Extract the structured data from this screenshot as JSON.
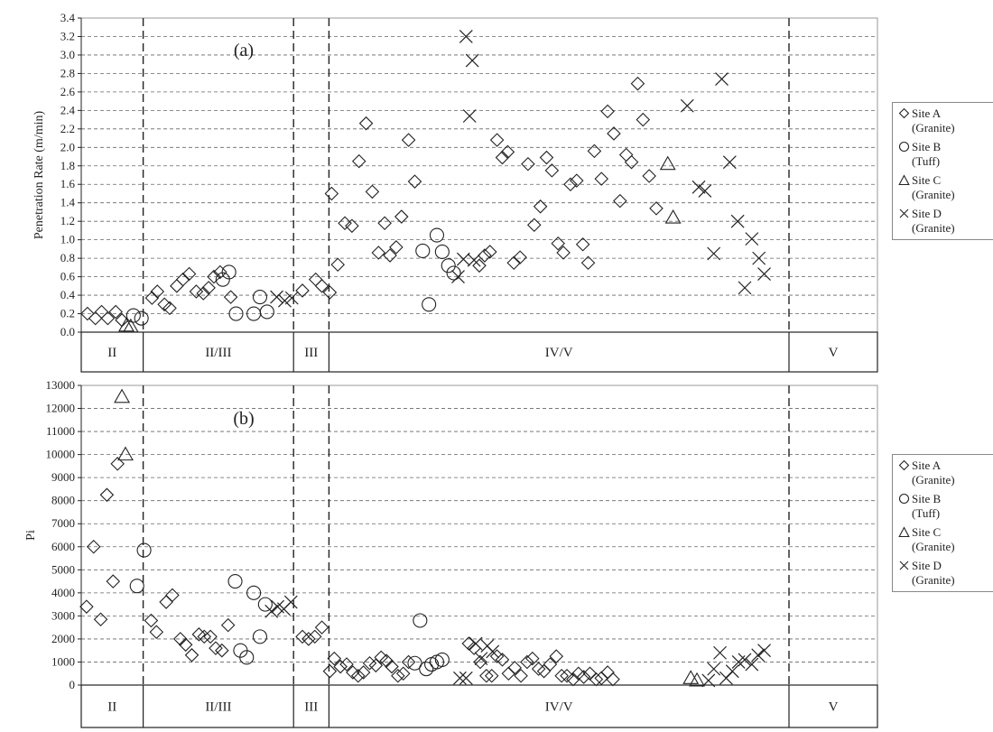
{
  "chart_data": [
    {
      "type": "scatter",
      "panel_label": "(a)",
      "ylabel": "Penetration Rate (m/min)",
      "ylim": [
        0,
        3.4
      ],
      "yticks": [
        "0.0",
        "0.2",
        "0.4",
        "0.6",
        "0.8",
        "1.0",
        "1.2",
        "1.4",
        "1.6",
        "1.8",
        "2.0",
        "2.2",
        "2.4",
        "2.6",
        "2.8",
        "3.0",
        "3.2",
        "3.4"
      ],
      "xlim": [
        0,
        90
      ],
      "grid": true,
      "class_boundaries": [
        7,
        24,
        28,
        80
      ],
      "classes": [
        {
          "label": "II",
          "from": 0,
          "to": 7
        },
        {
          "label": "II/III",
          "from": 7,
          "to": 24
        },
        {
          "label": "III",
          "from": 24,
          "to": 28
        },
        {
          "label": "IV/V",
          "from": 28,
          "to": 80
        },
        {
          "label": "V",
          "from": 80,
          "to": 90
        }
      ],
      "series": [
        {
          "name": "Site A (Granite)",
          "marker": "diamond",
          "points": [
            [
              0.7,
              0.2
            ],
            [
              1.6,
              0.15
            ],
            [
              2.3,
              0.22
            ],
            [
              3.0,
              0.15
            ],
            [
              3.9,
              0.22
            ],
            [
              4.6,
              0.13
            ],
            [
              8.0,
              0.37
            ],
            [
              8.6,
              0.44
            ],
            [
              9.4,
              0.3
            ],
            [
              10.0,
              0.26
            ],
            [
              10.8,
              0.5
            ],
            [
              11.5,
              0.57
            ],
            [
              12.2,
              0.63
            ],
            [
              13.0,
              0.44
            ],
            [
              13.8,
              0.42
            ],
            [
              14.4,
              0.48
            ],
            [
              15.0,
              0.6
            ],
            [
              15.7,
              0.65
            ],
            [
              16.9,
              0.38
            ],
            [
              25.0,
              0.45
            ],
            [
              26.5,
              0.57
            ],
            [
              27.2,
              0.5
            ],
            [
              28.1,
              0.43
            ],
            [
              28.3,
              1.5
            ],
            [
              29.0,
              0.73
            ],
            [
              29.8,
              1.18
            ],
            [
              30.6,
              1.15
            ],
            [
              31.4,
              1.85
            ],
            [
              32.2,
              2.26
            ],
            [
              32.9,
              1.52
            ],
            [
              33.6,
              0.86
            ],
            [
              34.3,
              1.18
            ],
            [
              34.9,
              0.83
            ],
            [
              35.6,
              0.92
            ],
            [
              36.2,
              1.25
            ],
            [
              37.0,
              2.08
            ],
            [
              37.7,
              1.63
            ],
            [
              45.0,
              0.72
            ],
            [
              45.6,
              0.83
            ],
            [
              46.2,
              0.87
            ],
            [
              47.0,
              2.08
            ],
            [
              47.6,
              1.89
            ],
            [
              48.2,
              1.95
            ],
            [
              48.9,
              0.75
            ],
            [
              49.6,
              0.81
            ],
            [
              50.5,
              1.82
            ],
            [
              51.2,
              1.16
            ],
            [
              51.9,
              1.36
            ],
            [
              52.6,
              1.89
            ],
            [
              53.2,
              1.75
            ],
            [
              53.9,
              0.96
            ],
            [
              54.5,
              0.86
            ],
            [
              55.3,
              1.6
            ],
            [
              56.0,
              1.64
            ],
            [
              56.7,
              0.95
            ],
            [
              57.3,
              0.75
            ],
            [
              58.0,
              1.96
            ],
            [
              58.8,
              1.66
            ],
            [
              59.5,
              2.39
            ],
            [
              60.2,
              2.15
            ],
            [
              60.9,
              1.42
            ],
            [
              61.6,
              1.92
            ],
            [
              62.2,
              1.84
            ],
            [
              62.9,
              2.69
            ],
            [
              63.5,
              2.3
            ],
            [
              64.2,
              1.69
            ],
            [
              65.0,
              1.34
            ]
          ]
        },
        {
          "name": "Site B (Tuff)",
          "marker": "circle",
          "points": [
            [
              5.9,
              0.18
            ],
            [
              6.8,
              0.15
            ],
            [
              16.0,
              0.57
            ],
            [
              16.7,
              0.65
            ],
            [
              17.5,
              0.2
            ],
            [
              19.5,
              0.2
            ],
            [
              20.2,
              0.38
            ],
            [
              21.0,
              0.22
            ],
            [
              38.6,
              0.88
            ],
            [
              39.3,
              0.3
            ],
            [
              40.2,
              1.05
            ],
            [
              40.8,
              0.87
            ],
            [
              41.5,
              0.72
            ],
            [
              42.1,
              0.64
            ]
          ]
        },
        {
          "name": "Site C (Granite)",
          "marker": "triangle",
          "points": [
            [
              5.1,
              0.07
            ],
            [
              5.6,
              0.06
            ],
            [
              66.3,
              1.82
            ],
            [
              66.9,
              1.24
            ]
          ]
        },
        {
          "name": "Site D (Granite)",
          "marker": "x",
          "points": [
            [
              22.1,
              0.38
            ],
            [
              23.0,
              0.34
            ],
            [
              23.8,
              0.37
            ],
            [
              43.5,
              3.2
            ],
            [
              44.2,
              2.94
            ],
            [
              43.9,
              2.34
            ],
            [
              42.6,
              0.6
            ],
            [
              43.2,
              0.79
            ],
            [
              44.4,
              0.78
            ],
            [
              68.5,
              2.45
            ],
            [
              69.8,
              1.57
            ],
            [
              70.5,
              1.53
            ],
            [
              71.5,
              0.85
            ],
            [
              72.4,
              2.74
            ],
            [
              73.3,
              1.84
            ],
            [
              74.2,
              1.2
            ],
            [
              75.0,
              0.48
            ],
            [
              75.8,
              1.01
            ],
            [
              76.6,
              0.8
            ],
            [
              77.2,
              0.63
            ]
          ]
        }
      ]
    },
    {
      "type": "scatter",
      "panel_label": "(b)",
      "ylabel": "Pi",
      "ylim": [
        0,
        13000
      ],
      "yticks": [
        "0",
        "1000",
        "2000",
        "3000",
        "4000",
        "5000",
        "6000",
        "7000",
        "8000",
        "9000",
        "10000",
        "11000",
        "12000",
        "13000"
      ],
      "xlim": [
        0,
        90
      ],
      "grid": true,
      "class_boundaries": [
        7,
        24,
        28,
        80
      ],
      "classes": [
        {
          "label": "II",
          "from": 0,
          "to": 7
        },
        {
          "label": "II/III",
          "from": 7,
          "to": 24
        },
        {
          "label": "III",
          "from": 24,
          "to": 28
        },
        {
          "label": "IV/V",
          "from": 28,
          "to": 80
        },
        {
          "label": "V",
          "from": 80,
          "to": 90
        }
      ],
      "series": [
        {
          "name": "Site A (Granite)",
          "marker": "diamond",
          "points": [
            [
              0.6,
              3400
            ],
            [
              1.4,
              6000
            ],
            [
              2.2,
              2850
            ],
            [
              2.9,
              8250
            ],
            [
              3.6,
              4500
            ],
            [
              4.1,
              9600
            ],
            [
              7.9,
              2800
            ],
            [
              8.5,
              2300
            ],
            [
              9.6,
              3600
            ],
            [
              10.3,
              3900
            ],
            [
              11.2,
              2000
            ],
            [
              11.8,
              1750
            ],
            [
              12.5,
              1300
            ],
            [
              13.3,
              2200
            ],
            [
              13.9,
              2100
            ],
            [
              14.6,
              2100
            ],
            [
              15.2,
              1600
            ],
            [
              15.9,
              1500
            ],
            [
              16.6,
              2600
            ],
            [
              25.0,
              2100
            ],
            [
              25.7,
              2000
            ],
            [
              26.4,
              2100
            ],
            [
              27.2,
              2500
            ],
            [
              28.1,
              600
            ],
            [
              28.6,
              1150
            ],
            [
              29.3,
              800
            ],
            [
              30.0,
              900
            ],
            [
              30.7,
              550
            ],
            [
              31.3,
              400
            ],
            [
              31.9,
              550
            ],
            [
              32.6,
              950
            ],
            [
              33.3,
              850
            ],
            [
              33.9,
              1200
            ],
            [
              34.5,
              1050
            ],
            [
              35.1,
              800
            ],
            [
              35.8,
              400
            ],
            [
              36.4,
              500
            ],
            [
              37.0,
              1000
            ],
            [
              43.8,
              1800
            ],
            [
              44.4,
              1600
            ],
            [
              45.1,
              1000
            ],
            [
              45.8,
              400
            ],
            [
              46.4,
              400
            ],
            [
              47.0,
              1250
            ],
            [
              47.6,
              1100
            ],
            [
              48.3,
              500
            ],
            [
              49.0,
              750
            ],
            [
              49.7,
              400
            ],
            [
              50.4,
              1000
            ],
            [
              51.0,
              1150
            ],
            [
              51.7,
              700
            ],
            [
              52.3,
              600
            ],
            [
              53.0,
              900
            ],
            [
              53.7,
              1250
            ],
            [
              54.3,
              400
            ],
            [
              54.9,
              400
            ],
            [
              55.6,
              250
            ],
            [
              56.2,
              500
            ],
            [
              56.8,
              350
            ],
            [
              57.5,
              500
            ],
            [
              58.2,
              250
            ],
            [
              58.8,
              300
            ],
            [
              59.5,
              550
            ],
            [
              60.1,
              250
            ]
          ]
        },
        {
          "name": "Site B (Tuff)",
          "marker": "circle",
          "points": [
            [
              6.3,
              4300
            ],
            [
              7.1,
              5850
            ],
            [
              17.4,
              4500
            ],
            [
              18.0,
              1500
            ],
            [
              18.7,
              1200
            ],
            [
              19.5,
              4000
            ],
            [
              20.2,
              2100
            ],
            [
              20.8,
              3500
            ],
            [
              37.7,
              950
            ],
            [
              38.3,
              2800
            ],
            [
              39.0,
              700
            ],
            [
              39.6,
              900
            ],
            [
              40.2,
              1000
            ],
            [
              40.8,
              1100
            ]
          ]
        },
        {
          "name": "Site C (Granite)",
          "marker": "triangle",
          "points": [
            [
              4.6,
              12500
            ],
            [
              5.0,
              10000
            ],
            [
              68.9,
              300
            ],
            [
              69.6,
              200
            ]
          ]
        },
        {
          "name": "Site D (Granite)",
          "marker": "x",
          "points": [
            [
              21.5,
              3200
            ],
            [
              22.2,
              3400
            ],
            [
              22.9,
              3300
            ],
            [
              23.7,
              3600
            ],
            [
              42.8,
              300
            ],
            [
              43.5,
              300
            ],
            [
              44.6,
              1800
            ],
            [
              45.2,
              1150
            ],
            [
              45.9,
              1700
            ],
            [
              46.5,
              1450
            ],
            [
              70.9,
              200
            ],
            [
              71.5,
              700
            ],
            [
              72.2,
              1400
            ],
            [
              72.9,
              300
            ],
            [
              73.6,
              600
            ],
            [
              74.3,
              1000
            ],
            [
              75.0,
              1100
            ],
            [
              75.8,
              900
            ],
            [
              76.5,
              1300
            ],
            [
              77.2,
              1500
            ]
          ]
        }
      ]
    }
  ],
  "legend": [
    {
      "marker": "diamond",
      "label": "Site A",
      "sub": "(Granite)"
    },
    {
      "marker": "circle",
      "label": "Site B",
      "sub": "(Tuff)"
    },
    {
      "marker": "triangle",
      "label": "Site C",
      "sub": "(Granite)"
    },
    {
      "marker": "x",
      "label": "Site D",
      "sub": "(Granite)"
    }
  ]
}
